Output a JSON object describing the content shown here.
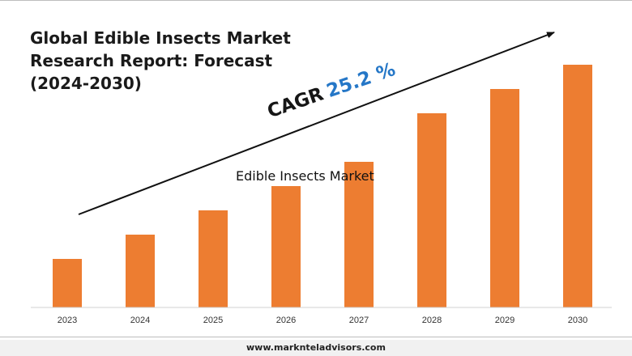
{
  "title_lines": [
    "Global Edible Insects Market",
    "Research Report: Forecast",
    "(2024-2030)"
  ],
  "cagr": {
    "label": "CAGR",
    "value": "25.2 %"
  },
  "footer": {
    "website": "www.marknteladvisors.com"
  },
  "colors": {
    "bar": "#ed7d31",
    "cagr_value": "#2577c7",
    "text": "#1a1a1a"
  },
  "chart_data": {
    "type": "bar",
    "categories": [
      "2023",
      "2024",
      "2025",
      "2026",
      "2027",
      "2028",
      "2029",
      "2030"
    ],
    "series": [
      {
        "name": "Edible Insects Market",
        "values": [
          20,
          30,
          40,
          50,
          60,
          80,
          90,
          100
        ]
      }
    ],
    "ylim": [
      0,
      100
    ],
    "grid": false
  }
}
